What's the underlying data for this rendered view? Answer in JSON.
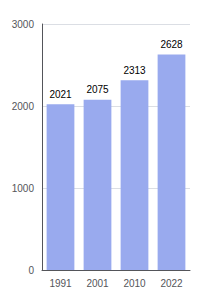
{
  "chart_data": {
    "type": "bar",
    "categories": [
      "1991",
      "2001",
      "2010",
      "2022"
    ],
    "values": [
      2021,
      2075,
      2313,
      2628
    ],
    "color": "#99aaee",
    "ylim": [
      0,
      3000
    ],
    "yticks": [
      0,
      1000,
      2000,
      3000
    ],
    "grid": true,
    "data_labels": true
  }
}
